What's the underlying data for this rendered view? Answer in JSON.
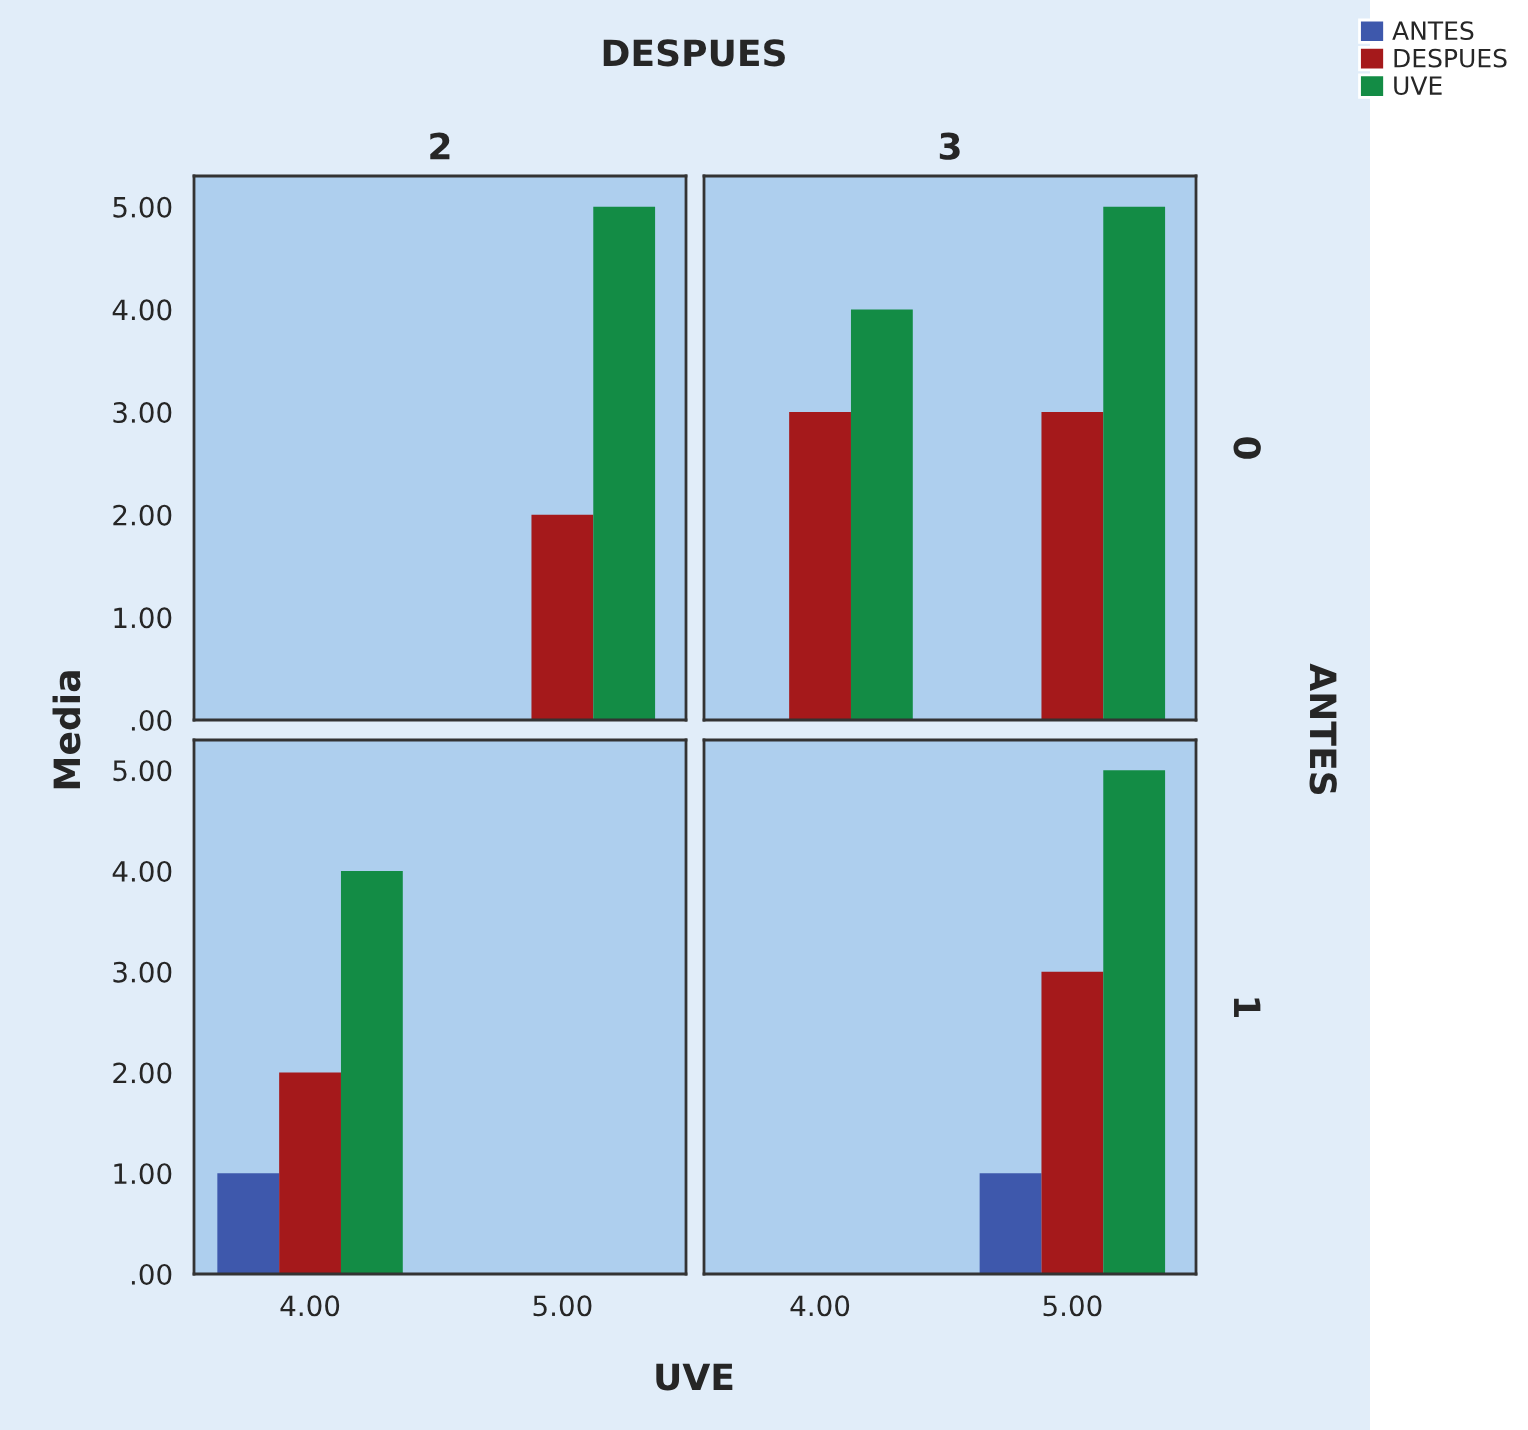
{
  "chart_data": [
    {
      "type": "bar",
      "title": "2",
      "ylabel": "Media",
      "annotations": [
        "DESPUES",
        "ANTES"
      ],
      "categories": [
        "4.00",
        "5.00"
      ],
      "series": [
        {
          "name": "ANTES",
          "color": "#3e58ac",
          "values": [
            null,
            0
          ]
        },
        {
          "name": "DESPUES",
          "color": "#a5191b",
          "values": [
            null,
            2
          ]
        },
        {
          "name": "UVE",
          "color": "#138c45",
          "values": [
            null,
            5
          ]
        }
      ],
      "ylim": [
        0,
        5.3
      ],
      "yticks": [
        {
          "value": 0,
          "label": ".00"
        },
        {
          "value": 1,
          "label": "1.00"
        },
        {
          "value": 2,
          "label": "2.00"
        },
        {
          "value": 3,
          "label": "3.00"
        },
        {
          "value": 4,
          "label": "4.00"
        },
        {
          "value": 5,
          "label": "5.00"
        }
      ],
      "tick_labels": "y",
      "legend": "top right",
      "grid": false
    },
    {
      "type": "bar",
      "title": "3",
      "annotations": [
        "0"
      ],
      "categories": [
        "4.00",
        "5.00"
      ],
      "series": [
        {
          "color": "#3e58ac",
          "values": [
            0,
            0
          ]
        },
        {
          "color": "#a5191b",
          "values": [
            3,
            3
          ]
        },
        {
          "color": "#138c45",
          "values": [
            4,
            5
          ]
        }
      ],
      "ylim": [
        0,
        5.3
      ],
      "yticks": [
        {
          "value": 0,
          "label": null
        },
        {
          "value": 1,
          "label": null
        },
        {
          "value": 2,
          "label": null
        },
        {
          "value": 3,
          "label": null
        },
        {
          "value": 4,
          "label": null
        },
        {
          "value": 5,
          "label": null
        }
      ],
      "tick_labels": false,
      "grid": false
    },
    {
      "type": "bar",
      "categories": [
        "4.00",
        "5.00"
      ],
      "series": [
        {
          "color": "#3e58ac",
          "values": [
            1,
            null
          ]
        },
        {
          "color": "#a5191b",
          "values": [
            2,
            null
          ]
        },
        {
          "color": "#138c45",
          "values": [
            4,
            null
          ]
        }
      ],
      "ylim": [
        0,
        5.3
      ],
      "yticks": [
        {
          "value": 0,
          "label": ".00"
        },
        {
          "value": 1,
          "label": "1.00"
        },
        {
          "value": 2,
          "label": "2.00"
        },
        {
          "value": 3,
          "label": "3.00"
        },
        {
          "value": 4,
          "label": "4.00"
        },
        {
          "value": 5,
          "label": "5.00"
        }
      ],
      "grid": false
    },
    {
      "type": "bar",
      "xlabel": "UVE",
      "annotations": [
        "1"
      ],
      "categories": [
        "4.00",
        "5.00"
      ],
      "series": [
        {
          "color": "#3e58ac",
          "values": [
            null,
            1
          ]
        },
        {
          "color": "#a5191b",
          "values": [
            null,
            3
          ]
        },
        {
          "color": "#138c45",
          "values": [
            null,
            5
          ]
        }
      ],
      "ylim": [
        0,
        5.3
      ],
      "yticks": [
        {
          "value": 0,
          "label": null
        },
        {
          "value": 1,
          "label": null
        },
        {
          "value": 2,
          "label": null
        },
        {
          "value": 3,
          "label": null
        },
        {
          "value": 4,
          "label": null
        },
        {
          "value": 5,
          "label": null
        }
      ],
      "tick_labels": "x",
      "grid": false
    }
  ]
}
